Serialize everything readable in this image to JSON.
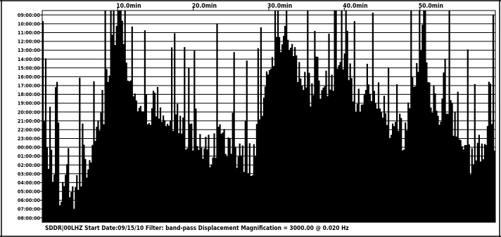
{
  "chart_data": {
    "type": "heatmap",
    "title": "",
    "xlabel": "",
    "ylabel": "",
    "x_tick_labels": [
      "10.0min",
      "20.0min",
      "30.0min",
      "40.0min",
      "50.0min"
    ],
    "x_ticks_minutes": [
      10,
      20,
      30,
      40,
      50
    ],
    "xlim_minutes": [
      0,
      60
    ],
    "trace_start_labels": [
      "09:00:00",
      "10:00:00",
      "11:00:00",
      "12:00:00",
      "13:00:00",
      "14:00:00",
      "15:00:00",
      "16:00:00",
      "17:00:00",
      "18:00:00",
      "19:00:00",
      "20:00:00",
      "21:00:00",
      "22:00:00",
      "23:00:00",
      "00:00:00",
      "01:00:00",
      "02:00:00",
      "03:00:00",
      "04:00:00",
      "05:00:00",
      "06:00:00",
      "07:00:00",
      "08:00:00"
    ],
    "activity_minutes": [
      0,
      2,
      4,
      6,
      8,
      10,
      12,
      14,
      16,
      18,
      20,
      22,
      24,
      26,
      28,
      30,
      32,
      34,
      36,
      38,
      40,
      42,
      44,
      46,
      48,
      50,
      52,
      54,
      56,
      58,
      60
    ],
    "activity_top_row": [
      13,
      20,
      22,
      17,
      13,
      0,
      10,
      11,
      11,
      13,
      15,
      16,
      14,
      17,
      17,
      6,
      3,
      7,
      10,
      8,
      5,
      11,
      9,
      13,
      14,
      4,
      11,
      11,
      17,
      16,
      14
    ],
    "footer": "SDDR|00LHZ  Start Date:09/15/10  Filter: band-pass Displacement Magnification =   3000.00 @ 0.020 Hz",
    "colors": {
      "background": "#ffffff",
      "trace": "#000000"
    },
    "grid": false,
    "legend": "none"
  }
}
